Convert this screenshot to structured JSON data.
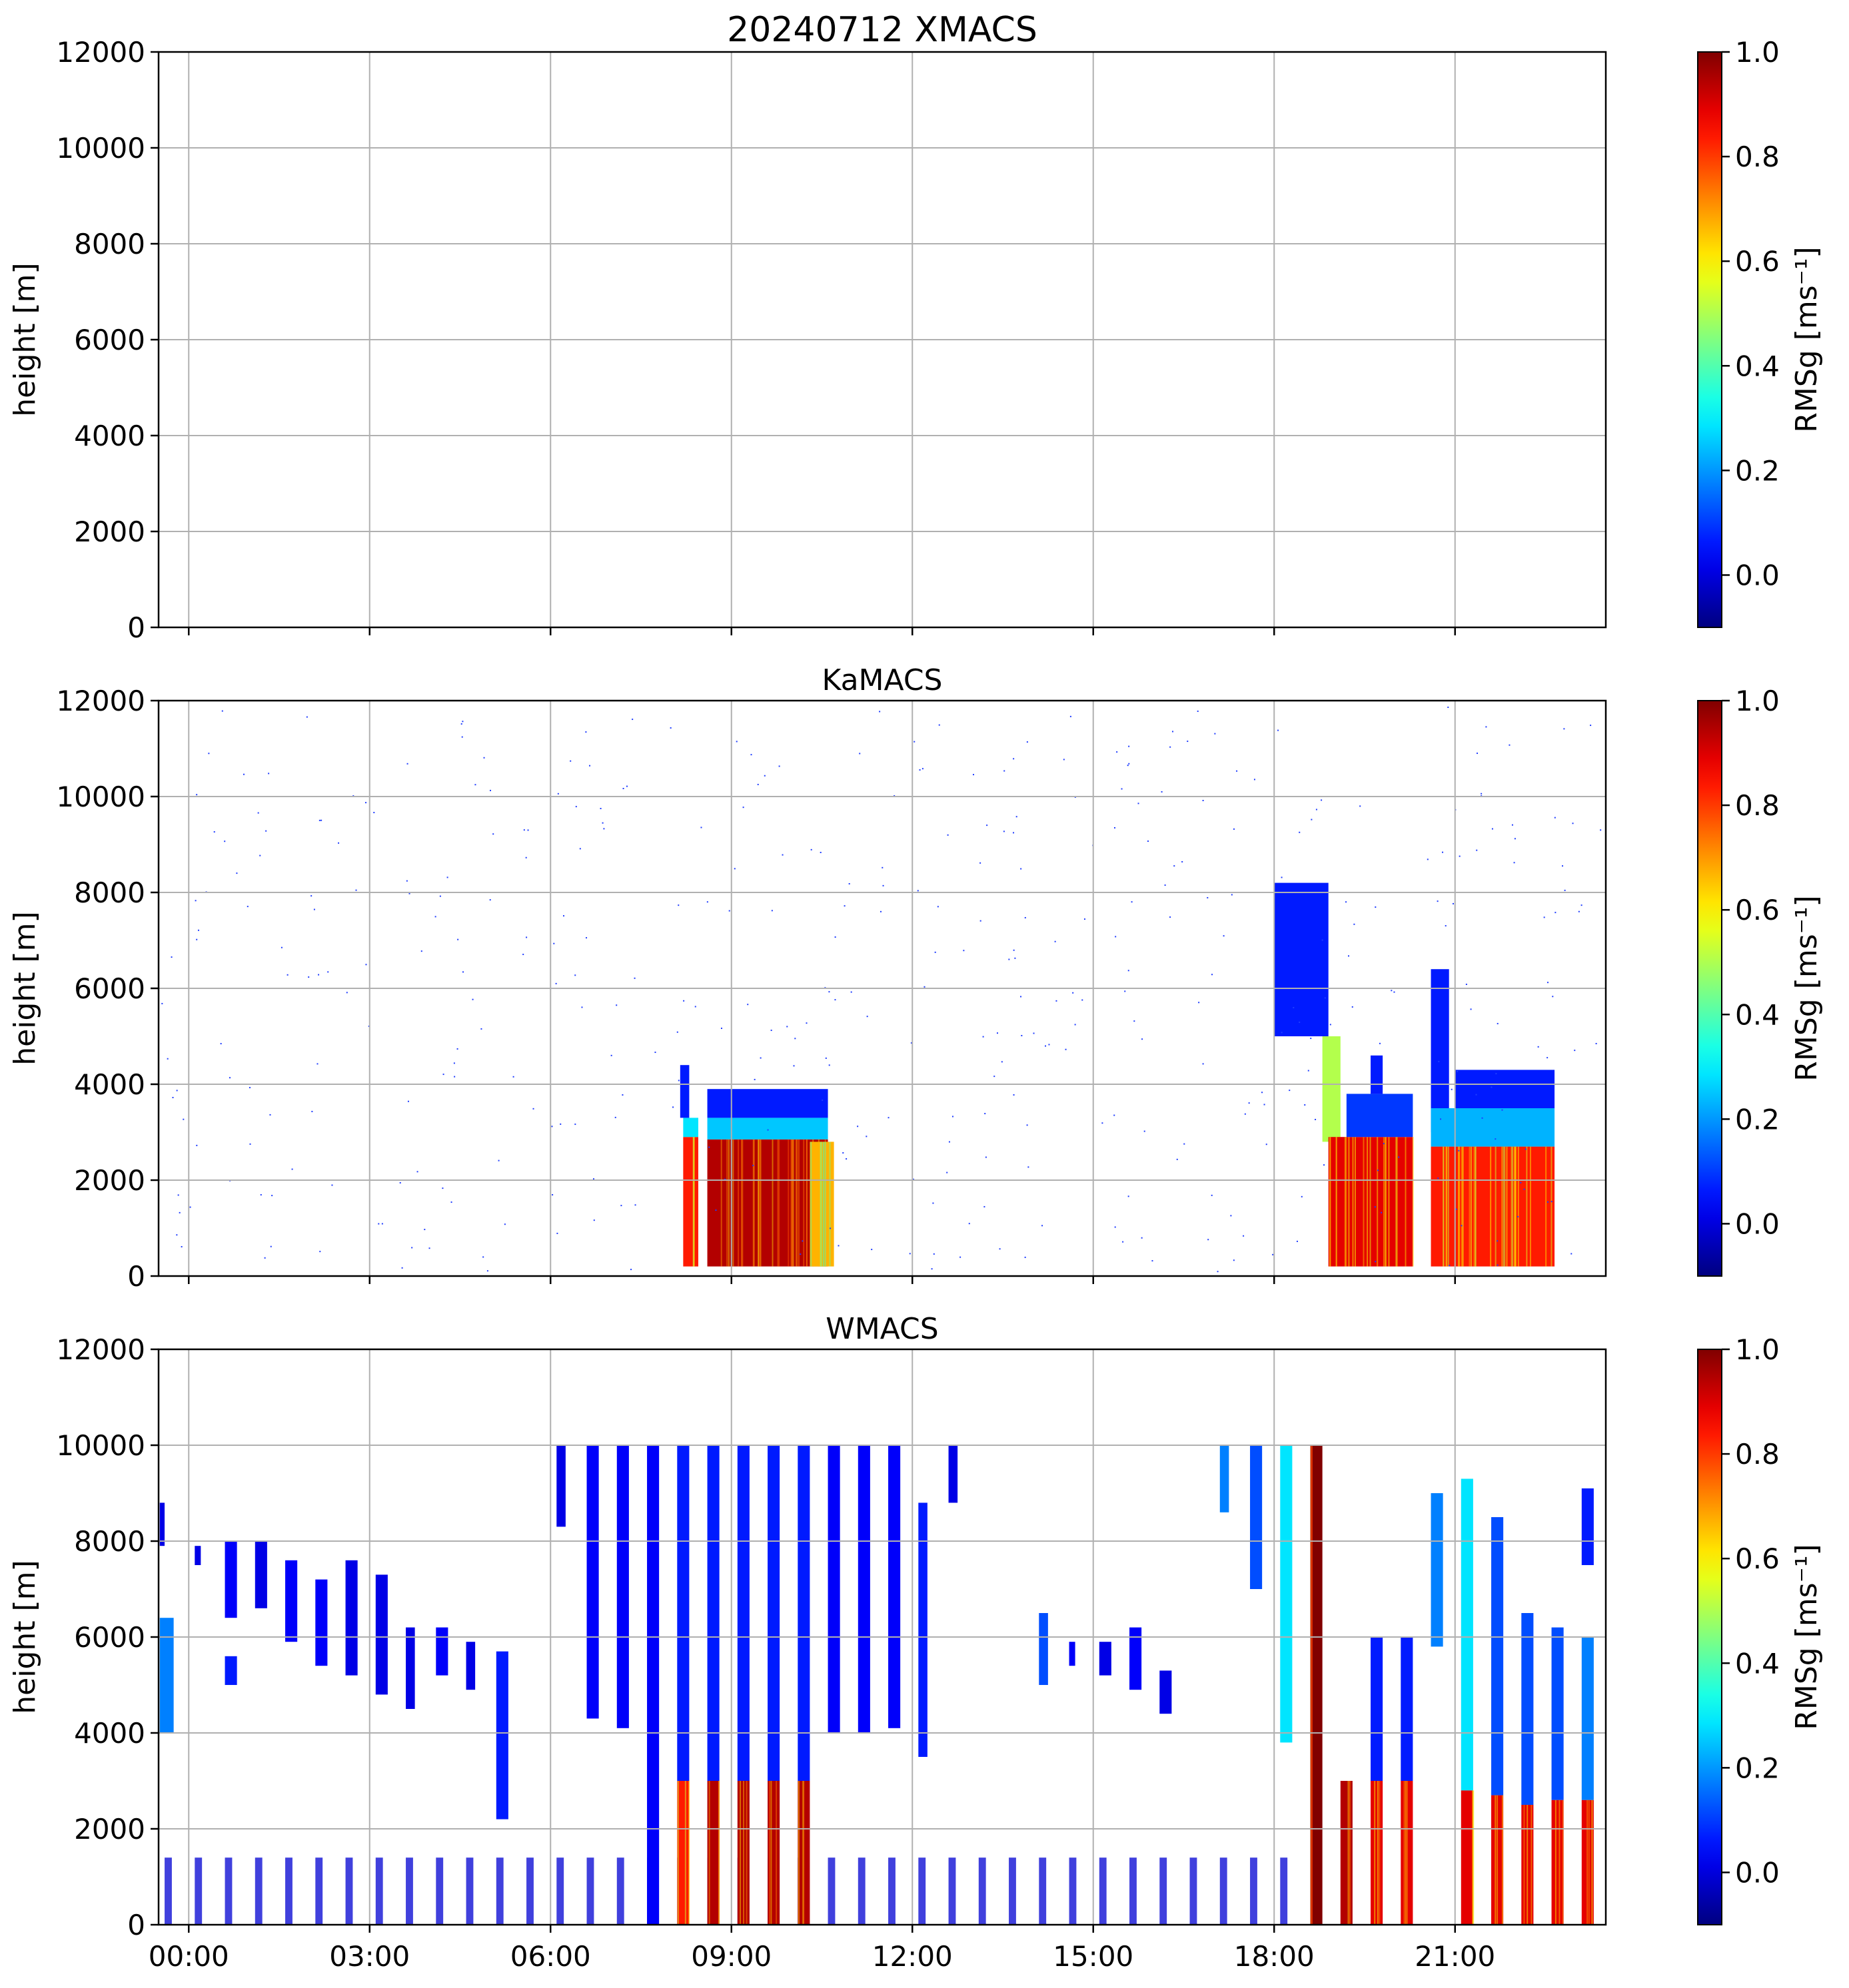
{
  "chart_data": [
    {
      "type": "heatmap",
      "title": "20240712 XMACS",
      "xlabel": "",
      "ylabel": "height [m]",
      "ylim": [
        0,
        12000
      ],
      "xlim": [
        -0.5,
        23.5
      ],
      "x_ticks": [
        "00:00",
        "03:00",
        "06:00",
        "09:00",
        "12:00",
        "15:00",
        "18:00",
        "21:00"
      ],
      "y_ticks": [
        "0",
        "2000",
        "4000",
        "6000",
        "8000",
        "10000",
        "12000"
      ],
      "grid": true,
      "colorbar": {
        "label": "RMSg [ms⁻¹]",
        "range": [
          -0.1,
          1.0
        ],
        "ticks": [
          "0.0",
          "0.2",
          "0.4",
          "0.6",
          "0.8",
          "1.0"
        ],
        "colormap": "jet"
      },
      "blocks": []
    },
    {
      "type": "heatmap",
      "title": "KaMACS",
      "xlabel": "",
      "ylabel": "height [m]",
      "ylim": [
        0,
        12000
      ],
      "xlim": [
        -0.5,
        23.5
      ],
      "x_ticks": [
        "00:00",
        "03:00",
        "06:00",
        "09:00",
        "12:00",
        "15:00",
        "18:00",
        "21:00"
      ],
      "y_ticks": [
        "0",
        "2000",
        "4000",
        "6000",
        "8000",
        "10000",
        "12000"
      ],
      "grid": true,
      "colorbar": {
        "label": "RMSg [ms⁻¹]",
        "range": [
          -0.1,
          1.0
        ],
        "ticks": [
          "0.0",
          "0.2",
          "0.4",
          "0.6",
          "0.8",
          "1.0"
        ],
        "colormap": "jet"
      },
      "blocks": [
        {
          "t0": 8.2,
          "t1": 8.45,
          "h0": 200,
          "h1": 2900,
          "v": 0.85
        },
        {
          "t0": 8.2,
          "t1": 8.45,
          "h0": 2900,
          "h1": 3300,
          "v": 0.35
        },
        {
          "t0": 8.15,
          "t1": 8.3,
          "h0": 3300,
          "h1": 4400,
          "v": 0.15
        },
        {
          "t0": 8.6,
          "t1": 10.6,
          "h0": 200,
          "h1": 2850,
          "v": 0.95
        },
        {
          "t0": 8.6,
          "t1": 10.6,
          "h0": 2850,
          "h1": 3300,
          "v": 0.32
        },
        {
          "t0": 8.6,
          "t1": 10.6,
          "h0": 3300,
          "h1": 3900,
          "v": 0.15
        },
        {
          "t0": 10.3,
          "t1": 10.7,
          "h0": 200,
          "h1": 2800,
          "v": 0.7
        },
        {
          "t0": 18.0,
          "t1": 18.9,
          "h0": 5000,
          "h1": 8200,
          "v": 0.15
        },
        {
          "t0": 18.8,
          "t1": 19.1,
          "h0": 2800,
          "h1": 5000,
          "v": 0.55
        },
        {
          "t0": 18.9,
          "t1": 20.3,
          "h0": 200,
          "h1": 2900,
          "v": 0.9
        },
        {
          "t0": 19.2,
          "t1": 20.3,
          "h0": 2900,
          "h1": 3800,
          "v": 0.18
        },
        {
          "t0": 19.6,
          "t1": 19.8,
          "h0": 3800,
          "h1": 4600,
          "v": 0.15
        },
        {
          "t0": 20.6,
          "t1": 20.9,
          "h0": 3000,
          "h1": 6400,
          "v": 0.15
        },
        {
          "t0": 20.6,
          "t1": 22.65,
          "h0": 200,
          "h1": 2700,
          "v": 0.85
        },
        {
          "t0": 20.6,
          "t1": 22.65,
          "h0": 2700,
          "h1": 3500,
          "v": 0.3
        },
        {
          "t0": 21.0,
          "t1": 22.65,
          "h0": 3500,
          "h1": 4300,
          "v": 0.15
        }
      ]
    },
    {
      "type": "heatmap",
      "title": "WMACS",
      "xlabel": "",
      "ylabel": "height [m]",
      "ylim": [
        0,
        12000
      ],
      "xlim": [
        -0.5,
        23.5
      ],
      "x_ticks": [
        "00:00",
        "03:00",
        "06:00",
        "09:00",
        "12:00",
        "15:00",
        "18:00",
        "21:00"
      ],
      "y_ticks": [
        "0",
        "2000",
        "4000",
        "6000",
        "8000",
        "10000",
        "12000"
      ],
      "grid": true,
      "colorbar": {
        "label": "RMSg [ms⁻¹]",
        "range": [
          -0.1,
          1.0
        ],
        "ticks": [
          "0.0",
          "0.2",
          "0.4",
          "0.6",
          "0.8",
          "1.0"
        ],
        "colormap": "jet"
      },
      "blocks": [
        {
          "t0": -0.48,
          "t1": -0.25,
          "h0": 4000,
          "h1": 6400,
          "v": 0.25
        },
        {
          "t0": -0.48,
          "t1": -0.4,
          "h0": 7900,
          "h1": 8800,
          "v": 0.1
        },
        {
          "t0": 0.1,
          "t1": 0.2,
          "h0": 7500,
          "h1": 7900,
          "v": 0.1
        },
        {
          "t0": 0.6,
          "t1": 0.8,
          "h0": 6400,
          "h1": 8000,
          "v": 0.12
        },
        {
          "t0": 0.6,
          "t1": 0.8,
          "h0": 5000,
          "h1": 5600,
          "v": 0.15
        },
        {
          "t0": 1.1,
          "t1": 1.3,
          "h0": 6600,
          "h1": 8000,
          "v": 0.1
        },
        {
          "t0": 1.6,
          "t1": 1.8,
          "h0": 5900,
          "h1": 7600,
          "v": 0.12
        },
        {
          "t0": 2.1,
          "t1": 2.3,
          "h0": 5400,
          "h1": 7200,
          "v": 0.12
        },
        {
          "t0": 2.6,
          "t1": 2.8,
          "h0": 5200,
          "h1": 7600,
          "v": 0.1
        },
        {
          "t0": 3.1,
          "t1": 3.3,
          "h0": 4800,
          "h1": 7300,
          "v": 0.1
        },
        {
          "t0": 3.6,
          "t1": 3.75,
          "h0": 4500,
          "h1": 6200,
          "v": 0.1
        },
        {
          "t0": 4.1,
          "t1": 4.3,
          "h0": 5200,
          "h1": 6200,
          "v": 0.12
        },
        {
          "t0": 4.6,
          "t1": 4.75,
          "h0": 4900,
          "h1": 5900,
          "v": 0.1
        },
        {
          "t0": 5.1,
          "t1": 5.3,
          "h0": 2200,
          "h1": 5700,
          "v": 0.15
        },
        {
          "t0": 6.1,
          "t1": 6.25,
          "h0": 8300,
          "h1": 10000,
          "v": 0.1
        },
        {
          "t0": 6.6,
          "t1": 6.8,
          "h0": 4300,
          "h1": 10000,
          "v": 0.12
        },
        {
          "t0": 7.1,
          "t1": 7.3,
          "h0": 4100,
          "h1": 10000,
          "v": 0.12
        },
        {
          "t0": 7.6,
          "t1": 7.8,
          "h0": 0,
          "h1": 10000,
          "v": 0.12
        },
        {
          "t0": 8.1,
          "t1": 8.3,
          "h0": 3000,
          "h1": 10000,
          "v": 0.15
        },
        {
          "t0": 8.1,
          "t1": 8.3,
          "h0": 0,
          "h1": 3000,
          "v": 0.85
        },
        {
          "t0": 8.6,
          "t1": 8.8,
          "h0": 3000,
          "h1": 10000,
          "v": 0.15
        },
        {
          "t0": 8.6,
          "t1": 8.8,
          "h0": 0,
          "h1": 3000,
          "v": 0.95
        },
        {
          "t0": 9.1,
          "t1": 9.3,
          "h0": 3000,
          "h1": 10000,
          "v": 0.15
        },
        {
          "t0": 9.1,
          "t1": 9.3,
          "h0": 0,
          "h1": 3000,
          "v": 0.95
        },
        {
          "t0": 9.6,
          "t1": 9.8,
          "h0": 3000,
          "h1": 10000,
          "v": 0.15
        },
        {
          "t0": 9.6,
          "t1": 9.8,
          "h0": 0,
          "h1": 3000,
          "v": 0.95
        },
        {
          "t0": 10.1,
          "t1": 10.3,
          "h0": 3000,
          "h1": 10000,
          "v": 0.15
        },
        {
          "t0": 10.1,
          "t1": 10.3,
          "h0": 0,
          "h1": 3000,
          "v": 0.95
        },
        {
          "t0": 10.6,
          "t1": 10.8,
          "h0": 4000,
          "h1": 10000,
          "v": 0.12
        },
        {
          "t0": 11.1,
          "t1": 11.3,
          "h0": 4000,
          "h1": 10000,
          "v": 0.12
        },
        {
          "t0": 11.6,
          "t1": 11.8,
          "h0": 4100,
          "h1": 10000,
          "v": 0.12
        },
        {
          "t0": 12.1,
          "t1": 12.25,
          "h0": 3500,
          "h1": 8800,
          "v": 0.15
        },
        {
          "t0": 12.6,
          "t1": 12.75,
          "h0": 8800,
          "h1": 10000,
          "v": 0.1
        },
        {
          "t0": 14.1,
          "t1": 14.25,
          "h0": 5000,
          "h1": 6500,
          "v": 0.2
        },
        {
          "t0": 14.6,
          "t1": 14.7,
          "h0": 5400,
          "h1": 5900,
          "v": 0.12
        },
        {
          "t0": 15.1,
          "t1": 15.3,
          "h0": 5200,
          "h1": 5900,
          "v": 0.1
        },
        {
          "t0": 15.6,
          "t1": 15.8,
          "h0": 4900,
          "h1": 6200,
          "v": 0.12
        },
        {
          "t0": 16.1,
          "t1": 16.3,
          "h0": 4400,
          "h1": 5300,
          "v": 0.1
        },
        {
          "t0": 17.1,
          "t1": 17.25,
          "h0": 8600,
          "h1": 10000,
          "v": 0.25
        },
        {
          "t0": 17.6,
          "t1": 17.8,
          "h0": 7000,
          "h1": 10000,
          "v": 0.2
        },
        {
          "t0": 18.1,
          "t1": 18.3,
          "h0": 3800,
          "h1": 10000,
          "v": 0.35
        },
        {
          "t0": 18.6,
          "t1": 18.8,
          "h0": 0,
          "h1": 10000,
          "v": 1.0
        },
        {
          "t0": 19.1,
          "t1": 19.3,
          "h0": 0,
          "h1": 3000,
          "v": 0.95
        },
        {
          "t0": 19.6,
          "t1": 19.8,
          "h0": 3000,
          "h1": 6000,
          "v": 0.15
        },
        {
          "t0": 19.6,
          "t1": 19.8,
          "h0": 0,
          "h1": 3000,
          "v": 0.9
        },
        {
          "t0": 20.1,
          "t1": 20.3,
          "h0": 3000,
          "h1": 6000,
          "v": 0.15
        },
        {
          "t0": 20.1,
          "t1": 20.3,
          "h0": 0,
          "h1": 3000,
          "v": 0.9
        },
        {
          "t0": 20.6,
          "t1": 20.8,
          "h0": 5800,
          "h1": 9000,
          "v": 0.25
        },
        {
          "t0": 21.1,
          "t1": 21.3,
          "h0": 2800,
          "h1": 9300,
          "v": 0.35
        },
        {
          "t0": 21.1,
          "t1": 21.3,
          "h0": 0,
          "h1": 2800,
          "v": 0.9
        },
        {
          "t0": 21.6,
          "t1": 21.8,
          "h0": 2700,
          "h1": 8500,
          "v": 0.2
        },
        {
          "t0": 21.6,
          "t1": 21.8,
          "h0": 0,
          "h1": 2700,
          "v": 0.9
        },
        {
          "t0": 22.1,
          "t1": 22.3,
          "h0": 2500,
          "h1": 6500,
          "v": 0.2
        },
        {
          "t0": 22.1,
          "t1": 22.3,
          "h0": 0,
          "h1": 2500,
          "v": 0.9
        },
        {
          "t0": 22.6,
          "t1": 22.8,
          "h0": 2600,
          "h1": 6200,
          "v": 0.2
        },
        {
          "t0": 22.6,
          "t1": 22.8,
          "h0": 0,
          "h1": 2600,
          "v": 0.9
        },
        {
          "t0": 23.1,
          "t1": 23.3,
          "h0": 2600,
          "h1": 6000,
          "v": 0.25
        },
        {
          "t0": 23.1,
          "t1": 23.3,
          "h0": 0,
          "h1": 2600,
          "v": 0.9
        },
        {
          "t0": 23.1,
          "t1": 23.3,
          "h0": 7500,
          "h1": 9100,
          "v": 0.15
        }
      ],
      "low_level_scans": {
        "t_start": -0.4,
        "t_end": 18.1,
        "step": 0.5,
        "h0": 0,
        "h1": 1400,
        "v": 0.08
      }
    }
  ]
}
